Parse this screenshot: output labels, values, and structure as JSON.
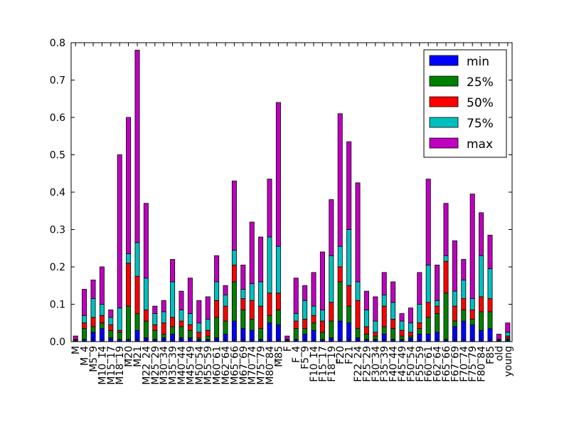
{
  "chart_data": {
    "type": "bar",
    "stacked": true,
    "title": "",
    "xlabel": "",
    "ylabel": "",
    "ylim": [
      0,
      0.8
    ],
    "yticks": [
      "0.0",
      "0.1",
      "0.2",
      "0.3",
      "0.4",
      "0.5",
      "0.6",
      "0.7",
      "0.8"
    ],
    "grid": false,
    "legend_position": "top-right",
    "categories": [
      "M",
      "M_4",
      "M5_9",
      "M10_14",
      "M15_17",
      "M18_19",
      "M20",
      "M21",
      "M22_24",
      "M25_29",
      "M30_34",
      "M35_39",
      "M40_44",
      "M45_49",
      "M50_54",
      "M55_59",
      "M60_61",
      "M62_64",
      "M65_66",
      "M67_69",
      "M70_74",
      "M75_79",
      "M80_84",
      "M85",
      "F",
      "F_4",
      "F5_9",
      "F10_14",
      "F15_17",
      "F18_19",
      "F20",
      "F21",
      "F22_24",
      "F25_29",
      "F30_34",
      "F35_39",
      "F40_44",
      "F45_49",
      "F50_54",
      "F55_59",
      "F60_61",
      "F62_64",
      "F65_66",
      "F67_69",
      "F70_74",
      "F75_79",
      "F80_84",
      "F85",
      "old",
      "young"
    ],
    "series": [
      {
        "name": "min",
        "color": "#0000ff",
        "values": [
          0.002,
          0.005,
          0.025,
          0.035,
          0.01,
          0.005,
          0.005,
          0.03,
          0.01,
          0.005,
          0.01,
          0.02,
          0.01,
          0.01,
          0.005,
          0.005,
          0.01,
          0.02,
          0.055,
          0.035,
          0.03,
          0.005,
          0.05,
          0.045,
          0.002,
          0.005,
          0.02,
          0.03,
          0.005,
          0.01,
          0.055,
          0.05,
          0.01,
          0.005,
          0.005,
          0.02,
          0.005,
          0.005,
          0.01,
          0.02,
          0.02,
          0.025,
          0.005,
          0.04,
          0.055,
          0.045,
          0.03,
          0.035,
          0.002,
          0.005
        ]
      },
      {
        "name": "25%",
        "color": "#008000",
        "values": [
          0.003,
          0.03,
          0.015,
          0.015,
          0.02,
          0.02,
          0.09,
          0.045,
          0.045,
          0.025,
          0.01,
          0.02,
          0.03,
          0.02,
          0.005,
          0.01,
          0.055,
          0.035,
          0.105,
          0.05,
          0.03,
          0.03,
          0.02,
          0.04,
          0.003,
          0.03,
          0.015,
          0.02,
          0.02,
          0.045,
          0.105,
          0.045,
          0.025,
          0.015,
          0.01,
          0.02,
          0.03,
          0.01,
          0.005,
          0.015,
          0.045,
          0.05,
          0.125,
          0.015,
          0.03,
          0.015,
          0.05,
          0.045,
          0.003,
          0.005
        ]
      },
      {
        "name": "50%",
        "color": "#ff0000",
        "values": [
          0.0,
          0.015,
          0.025,
          0.02,
          0.015,
          0.005,
          0.115,
          0.1,
          0.03,
          0.015,
          0.03,
          0.025,
          0.015,
          0.015,
          0.015,
          0.015,
          0.045,
          0.04,
          0.045,
          0.03,
          0.05,
          0.06,
          0.06,
          0.045,
          0.0,
          0.02,
          0.025,
          0.02,
          0.03,
          0.05,
          0.04,
          0.055,
          0.075,
          0.02,
          0.01,
          0.055,
          0.025,
          0.015,
          0.01,
          0.015,
          0.04,
          0.02,
          0.085,
          0.04,
          0.03,
          0.025,
          0.04,
          0.035,
          0.0,
          0.005
        ]
      },
      {
        "name": "75%",
        "color": "#00bfbf",
        "values": [
          0.0,
          0.02,
          0.05,
          0.03,
          0.02,
          0.06,
          0.025,
          0.09,
          0.085,
          0.03,
          0.03,
          0.095,
          0.03,
          0.03,
          0.025,
          0.03,
          0.05,
          0.03,
          0.04,
          0.025,
          0.045,
          0.065,
          0.15,
          0.125,
          0.0,
          0.02,
          0.05,
          0.025,
          0.03,
          0.125,
          0.055,
          0.15,
          0.05,
          0.045,
          0.03,
          0.03,
          0.045,
          0.025,
          0.025,
          0.05,
          0.1,
          0.015,
          0.015,
          0.04,
          0.05,
          0.03,
          0.11,
          0.08,
          0.0,
          0.01
        ]
      },
      {
        "name": "max",
        "color": "#bf00bf",
        "values": [
          0.01,
          0.07,
          0.05,
          0.1,
          0.02,
          0.41,
          0.365,
          0.515,
          0.2,
          0.02,
          0.03,
          0.06,
          0.05,
          0.095,
          0.06,
          0.06,
          0.07,
          0.025,
          0.185,
          0.065,
          0.165,
          0.12,
          0.155,
          0.385,
          0.01,
          0.095,
          0.04,
          0.09,
          0.155,
          0.15,
          0.355,
          0.235,
          0.265,
          0.05,
          0.065,
          0.06,
          0.055,
          0.02,
          0.04,
          0.085,
          0.23,
          0.095,
          0.14,
          0.135,
          0.055,
          0.28,
          0.115,
          0.09,
          0.015,
          0.025
        ]
      }
    ]
  }
}
